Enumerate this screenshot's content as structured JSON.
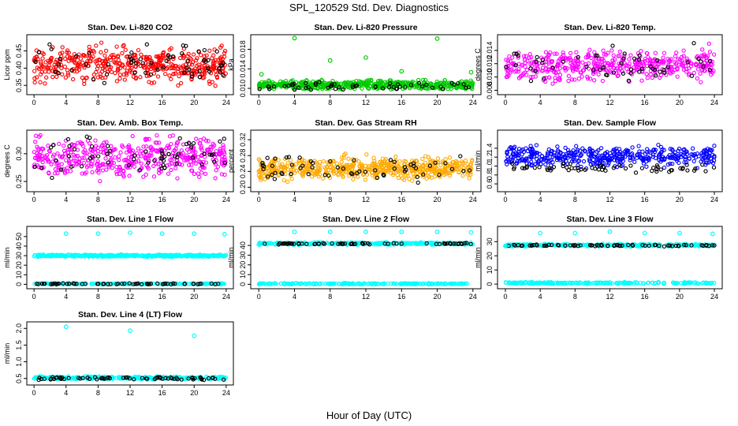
{
  "figure": {
    "title": "SPL_120529  Std. Dev. Diagnostics",
    "xlabel": "Hour of Day (UTC)"
  },
  "chart_data": [
    {
      "type": "scatter",
      "title": "Stan. Dev. Li-820 CO2",
      "xlabel": "",
      "ylabel": "Licor ppm",
      "xlim": [
        0,
        24
      ],
      "ylim": [
        0.33,
        0.49
      ],
      "xticks": [
        "0",
        "4",
        "8",
        "12",
        "16",
        "20",
        "24"
      ],
      "yticks": [
        "0.35",
        "0.40",
        "0.45"
      ],
      "series": [
        {
          "color": "#ff0000",
          "n": 460,
          "center": 0.41,
          "spread": 0.024,
          "min": 0.34,
          "max": 0.48
        },
        {
          "color": "#000000",
          "n": 60,
          "center": 0.41,
          "spread": 0.028,
          "min": 0.35,
          "max": 0.47
        }
      ]
    },
    {
      "type": "scatter",
      "title": "Stan. Dev. Li-820 Pressure",
      "xlabel": "",
      "ylabel": "kPa",
      "xlim": [
        0,
        24
      ],
      "ylim": [
        0.0092,
        0.0205
      ],
      "xticks": [
        "0",
        "4",
        "8",
        "12",
        "16",
        "20",
        "24"
      ],
      "yticks": [
        "0.010",
        "0.014",
        "0.018"
      ],
      "series": [
        {
          "color": "#00cc00",
          "n": 520,
          "center": 0.0107,
          "spread": 0.00045,
          "min": 0.0098,
          "max": 0.0118
        },
        {
          "color": "#000000",
          "n": 55,
          "center": 0.0104,
          "spread": 0.0005,
          "min": 0.0097,
          "max": 0.0114
        }
      ],
      "outliers": [
        {
          "color": "#00cc00",
          "x": 0.3,
          "y": 0.0129
        },
        {
          "color": "#00cc00",
          "x": 4.0,
          "y": 0.0203
        },
        {
          "color": "#00cc00",
          "x": 8.0,
          "y": 0.0157
        },
        {
          "color": "#00cc00",
          "x": 12.0,
          "y": 0.0163
        },
        {
          "color": "#00cc00",
          "x": 16.0,
          "y": 0.0135
        },
        {
          "color": "#00cc00",
          "x": 20.0,
          "y": 0.0202
        },
        {
          "color": "#00cc00",
          "x": 23.8,
          "y": 0.0133
        }
      ]
    },
    {
      "type": "scatter",
      "title": "Stan. Dev. Li-820 Temp.",
      "xlabel": "",
      "ylabel": "degrees C",
      "xlim": [
        0,
        24
      ],
      "ylim": [
        0.0077,
        0.016
      ],
      "xticks": [
        "0",
        "4",
        "8",
        "12",
        "16",
        "20",
        "24"
      ],
      "yticks": [
        "0.008",
        "0.010",
        "0.012",
        "0.014"
      ],
      "series": [
        {
          "color": "#ff00ff",
          "n": 460,
          "center": 0.0118,
          "spread": 0.0011,
          "min": 0.008,
          "max": 0.0157
        },
        {
          "color": "#000000",
          "n": 55,
          "center": 0.0118,
          "spread": 0.0011,
          "min": 0.009,
          "max": 0.0152
        }
      ]
    },
    {
      "type": "scatter",
      "title": "Stan. Dev. Amb. Box Temp.",
      "xlabel": "",
      "ylabel": "degrees C",
      "xlim": [
        0,
        24
      ],
      "ylim": [
        0.236,
        0.338
      ],
      "xticks": [
        "0",
        "4",
        "8",
        "12",
        "16",
        "20",
        "24"
      ],
      "yticks": [
        "0.25",
        "0.30"
      ],
      "series": [
        {
          "color": "#ff00ff",
          "n": 460,
          "center": 0.295,
          "spread": 0.018,
          "min": 0.24,
          "max": 0.334
        },
        {
          "color": "#000000",
          "n": 60,
          "center": 0.298,
          "spread": 0.017,
          "min": 0.25,
          "max": 0.332
        }
      ]
    },
    {
      "type": "scatter",
      "title": "Stan. Dev. Gas Stream RH",
      "xlabel": "",
      "ylabel": "percent",
      "xlim": [
        0,
        24
      ],
      "ylim": [
        0.195,
        0.338
      ],
      "xticks": [
        "0",
        "4",
        "8",
        "12",
        "16",
        "20",
        "24"
      ],
      "yticks": [
        "0.20",
        "0.24",
        "0.28",
        "0.32"
      ],
      "series": [
        {
          "color": "#ffaa00",
          "n": 560,
          "center": 0.248,
          "spread": 0.013,
          "min": 0.212,
          "max": 0.3
        },
        {
          "color": "#000000",
          "n": 60,
          "center": 0.247,
          "spread": 0.016,
          "min": 0.208,
          "max": 0.3
        }
      ]
    },
    {
      "type": "scatter",
      "title": "Stan. Dev. Sample Flow",
      "xlabel": "",
      "ylabel": "ml/min",
      "xlim": [
        0,
        24
      ],
      "ylim": [
        0.48,
        1.75
      ],
      "xticks": [
        "0",
        "4",
        "8",
        "12",
        "16",
        "20",
        "24"
      ],
      "yticks": [
        "0.6",
        "0.8",
        "1.0",
        "1.2",
        "1.4"
      ],
      "series": [
        {
          "color": "#0000ff",
          "n": 440,
          "center": 1.22,
          "spread": 0.11,
          "min": 0.55,
          "max": 1.72
        },
        {
          "color": "#000000",
          "n": 60,
          "center": 0.96,
          "spread": 0.05,
          "min": 0.82,
          "max": 1.08
        }
      ]
    },
    {
      "type": "scatter",
      "title": "Stan. Dev. Line 1 Flow",
      "xlabel": "",
      "ylabel": "ml/min",
      "xlim": [
        0,
        24
      ],
      "ylim": [
        -2,
        58
      ],
      "xticks": [
        "0",
        "4",
        "8",
        "12",
        "16",
        "20",
        "24"
      ],
      "yticks": [
        "0",
        "10",
        "20",
        "30",
        "40",
        "50"
      ],
      "series": [
        {
          "color": "#00ffff",
          "n": 420,
          "center": 30,
          "spread": 0.5,
          "min": 28.5,
          "max": 31.5
        },
        {
          "color": "#00ffff",
          "n": 200,
          "center": 0.6,
          "spread": 0.3,
          "min": 0,
          "max": 1.5
        },
        {
          "color": "#000000",
          "n": 60,
          "center": 0.5,
          "spread": 0.25,
          "min": 0,
          "max": 1.3
        }
      ],
      "outliers": [
        {
          "color": "#00ffff",
          "x": 4,
          "y": 53
        },
        {
          "color": "#00ffff",
          "x": 8,
          "y": 53
        },
        {
          "color": "#00ffff",
          "x": 12,
          "y": 54
        },
        {
          "color": "#00ffff",
          "x": 16,
          "y": 53
        },
        {
          "color": "#00ffff",
          "x": 20,
          "y": 53
        },
        {
          "color": "#00ffff",
          "x": 23.8,
          "y": 52.5
        }
      ]
    },
    {
      "type": "scatter",
      "title": "Stan. Dev. Line 2 Flow",
      "xlabel": "",
      "ylabel": "ml/min",
      "xlim": [
        0,
        24
      ],
      "ylim": [
        -2,
        57
      ],
      "xticks": [
        "0",
        "4",
        "8",
        "12",
        "16",
        "20",
        "24"
      ],
      "yticks": [
        "0",
        "10",
        "20",
        "30",
        "40"
      ],
      "series": [
        {
          "color": "#00ffff",
          "n": 300,
          "center": 42.0,
          "spread": 0.6,
          "min": 40.5,
          "max": 43.5
        },
        {
          "color": "#00ffff",
          "n": 220,
          "center": 0.6,
          "spread": 0.3,
          "min": 0,
          "max": 1.5
        },
        {
          "color": "#000000",
          "n": 70,
          "center": 41.8,
          "spread": 0.4,
          "min": 40.8,
          "max": 43.0
        }
      ],
      "outliers": [
        {
          "color": "#00ffff",
          "x": 0,
          "y": 41
        },
        {
          "color": "#00ffff",
          "x": 4,
          "y": 54
        },
        {
          "color": "#00ffff",
          "x": 8,
          "y": 54
        },
        {
          "color": "#00ffff",
          "x": 12,
          "y": 54
        },
        {
          "color": "#00ffff",
          "x": 16,
          "y": 54
        },
        {
          "color": "#00ffff",
          "x": 20,
          "y": 54
        },
        {
          "color": "#00ffff",
          "x": 23.8,
          "y": 53.5
        }
      ]
    },
    {
      "type": "scatter",
      "title": "Stan. Dev. Line 3 Flow",
      "xlabel": "",
      "ylabel": "ml/min",
      "xlim": [
        0,
        24
      ],
      "ylim": [
        -1.5,
        39
      ],
      "xticks": [
        "0",
        "4",
        "8",
        "12",
        "16",
        "20",
        "24"
      ],
      "yticks": [
        "0",
        "10",
        "20",
        "30"
      ],
      "series": [
        {
          "color": "#00ffff",
          "n": 300,
          "center": 27.5,
          "spread": 0.4,
          "min": 26.5,
          "max": 28.5
        },
        {
          "color": "#00ffff",
          "n": 220,
          "center": 0.8,
          "spread": 0.3,
          "min": 0,
          "max": 1.6
        },
        {
          "color": "#000000",
          "n": 70,
          "center": 27.3,
          "spread": 0.3,
          "min": 26.6,
          "max": 28.0
        }
      ],
      "outliers": [
        {
          "color": "#00ffff",
          "x": 0,
          "y": 27
        },
        {
          "color": "#00ffff",
          "x": 4,
          "y": 36
        },
        {
          "color": "#00ffff",
          "x": 8,
          "y": 36
        },
        {
          "color": "#00ffff",
          "x": 12,
          "y": 37
        },
        {
          "color": "#00ffff",
          "x": 16,
          "y": 36
        },
        {
          "color": "#00ffff",
          "x": 20,
          "y": 36
        },
        {
          "color": "#00ffff",
          "x": 23.8,
          "y": 35.5
        }
      ]
    },
    {
      "type": "scatter",
      "title": "Stan. Dev. Line 4 (LT) Flow",
      "xlabel": "",
      "ylabel": "ml/min",
      "xlim": [
        0,
        24
      ],
      "ylim": [
        0.38,
        2.12
      ],
      "xticks": [
        "0",
        "4",
        "8",
        "12",
        "16",
        "20",
        "24"
      ],
      "yticks": [
        "0.5",
        "1.0",
        "1.5",
        "2.0"
      ],
      "series": [
        {
          "color": "#00ffff",
          "n": 300,
          "center": 0.52,
          "spread": 0.02,
          "min": 0.46,
          "max": 0.6
        },
        {
          "color": "#000000",
          "n": 70,
          "center": 0.5,
          "spread": 0.02,
          "min": 0.45,
          "max": 0.56
        }
      ],
      "outliers": [
        {
          "color": "#00ffff",
          "x": 4,
          "y": 2.05
        },
        {
          "color": "#00ffff",
          "x": 12,
          "y": 1.93
        },
        {
          "color": "#00ffff",
          "x": 20,
          "y": 1.78
        }
      ]
    }
  ]
}
